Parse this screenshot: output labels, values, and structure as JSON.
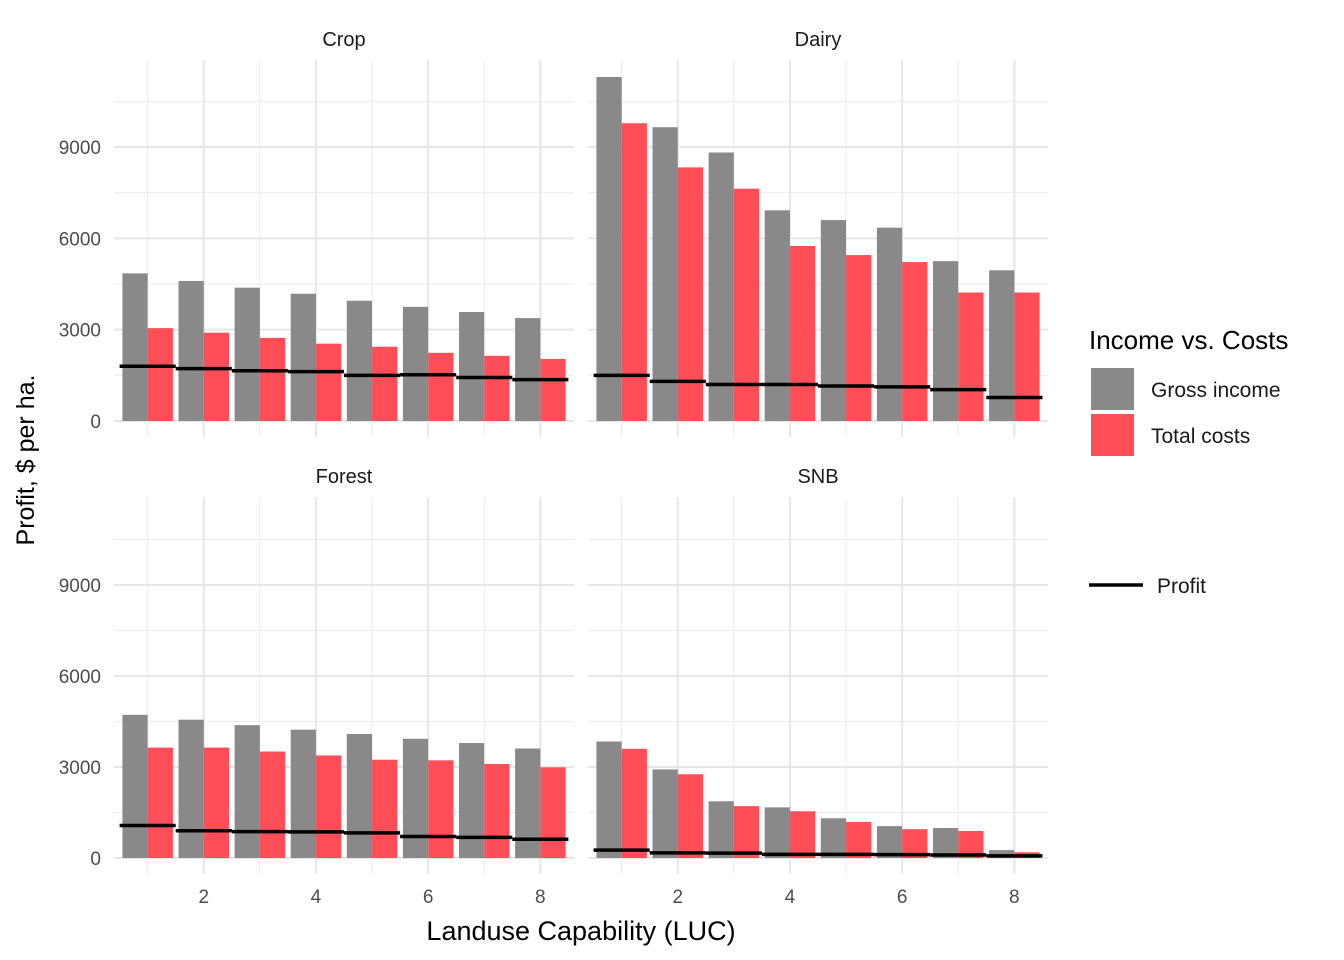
{
  "chart_data": {
    "type": "bar",
    "xlabel": "Landuse Capability (LUC)",
    "ylabel": "Profit, $ per ha.",
    "x_ticks": [
      2,
      4,
      6,
      8
    ],
    "y_ticks": [
      0,
      3000,
      6000,
      9000
    ],
    "y_tick_labels": [
      "0",
      "3000",
      "6000",
      "9000"
    ],
    "x_tick_labels": [
      "2",
      "4",
      "6",
      "8"
    ],
    "ylim": [
      0,
      11300
    ],
    "xlim": [
      0.4,
      8.6
    ],
    "grid": true,
    "categories": [
      1,
      2,
      3,
      4,
      5,
      6,
      7,
      8
    ],
    "legend": {
      "position": "right",
      "fill_title": "Income vs. Costs",
      "fill_items": [
        {
          "label": "Gross income",
          "color": "#898989"
        },
        {
          "label": "Total costs",
          "color": "#ff4e57"
        }
      ],
      "line_items": [
        {
          "label": "Profit",
          "color": "#000000"
        }
      ]
    },
    "panels": [
      {
        "title": "Crop",
        "gross_income": [
          4850,
          4600,
          4380,
          4180,
          3950,
          3750,
          3580,
          3380
        ],
        "total_costs": [
          3050,
          2900,
          2730,
          2540,
          2440,
          2240,
          2140,
          2040
        ],
        "profit": [
          1800,
          1720,
          1650,
          1620,
          1500,
          1520,
          1430,
          1360
        ]
      },
      {
        "title": "Dairy",
        "gross_income": [
          11300,
          9650,
          8820,
          6920,
          6600,
          6350,
          5250,
          4950
        ],
        "total_costs": [
          9780,
          8330,
          7630,
          5750,
          5450,
          5220,
          4220,
          4220
        ],
        "profit": [
          1500,
          1300,
          1200,
          1200,
          1150,
          1120,
          1030,
          770
        ]
      },
      {
        "title": "Forest",
        "gross_income": [
          4720,
          4560,
          4380,
          4230,
          4090,
          3930,
          3790,
          3610
        ],
        "total_costs": [
          3640,
          3640,
          3510,
          3380,
          3240,
          3220,
          3100,
          2990
        ],
        "profit": [
          1070,
          900,
          870,
          860,
          830,
          710,
          680,
          620
        ]
      },
      {
        "title": "SNB",
        "gross_income": [
          3840,
          2920,
          1870,
          1670,
          1310,
          1050,
          990,
          260
        ],
        "total_costs": [
          3600,
          2760,
          1710,
          1540,
          1190,
          950,
          890,
          190
        ],
        "profit": [
          260,
          170,
          160,
          120,
          120,
          110,
          100,
          70
        ]
      }
    ]
  }
}
